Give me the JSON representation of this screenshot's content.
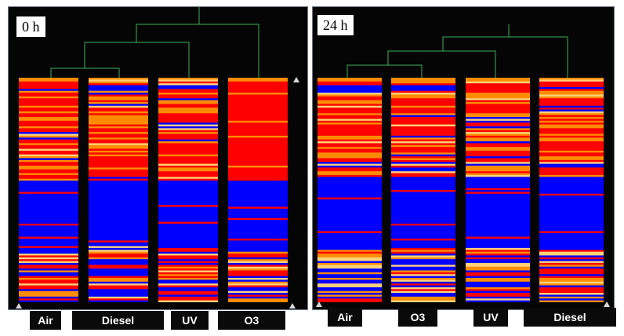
{
  "colors": {
    "background": "#050505",
    "dendrogram": "#3fae5a",
    "low": "#0000ff",
    "high": "#ff0000",
    "mid": "#ff8c00",
    "light": "#ffd27a"
  },
  "chart_data": [
    {
      "type": "heatmap",
      "title": "0 h",
      "columns": [
        "Air",
        "Diesel",
        "UV",
        "O3"
      ],
      "dendrogram": "((Air, Diesel), UV), O3",
      "row_blocks": [
        {
          "region": "top",
          "fraction": 0.46,
          "value": "mostly high (red/orange/yellow)"
        },
        {
          "region": "middle",
          "fraction": 0.29,
          "value": "low (blue)"
        },
        {
          "region": "bottom",
          "fraction": 0.25,
          "value": "mixed high/low"
        }
      ]
    },
    {
      "type": "heatmap",
      "title": "24 h",
      "columns": [
        "Air",
        "O3",
        "UV",
        "Diesel"
      ],
      "dendrogram": "((Air, O3), UV), Diesel",
      "row_blocks": [
        {
          "region": "top",
          "fraction": 0.44,
          "value": "mostly high (red/orange/yellow)"
        },
        {
          "region": "middle",
          "fraction": 0.32,
          "value": "low (blue)"
        },
        {
          "region": "bottom",
          "fraction": 0.24,
          "value": "mixed high/low"
        }
      ]
    }
  ]
}
